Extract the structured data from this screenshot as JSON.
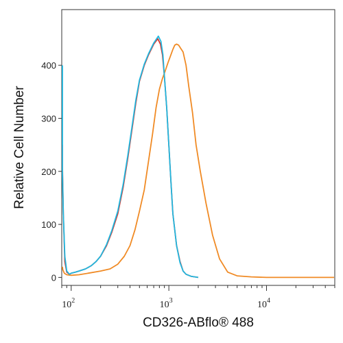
{
  "chart_data": {
    "type": "line",
    "xlabel": "CD326-ABflo® 488",
    "ylabel": "Relative Cell Number",
    "x_scale": "log",
    "xlim": [
      80,
      50000
    ],
    "ylim": [
      -15,
      505
    ],
    "x_ticks": [
      {
        "value": 100,
        "base": "10",
        "exp": "2"
      },
      {
        "value": 1000,
        "base": "10",
        "exp": "3"
      },
      {
        "value": 10000,
        "base": "10",
        "exp": "4"
      }
    ],
    "y_ticks": [
      0,
      100,
      200,
      300,
      400
    ],
    "series": [
      {
        "color": "#d9332b",
        "x": [
          80,
          81,
          83,
          86,
          90,
          96,
          100,
          110,
          120,
          140,
          160,
          180,
          200,
          230,
          260,
          300,
          340,
          380,
          420,
          460,
          500,
          560,
          620,
          700,
          770,
          820,
          860,
          900,
          950,
          1000,
          1050,
          1100,
          1200,
          1300,
          1400,
          1500,
          1700,
          2000
        ],
        "y": [
          250,
          210,
          120,
          30,
          10,
          6,
          8,
          10,
          12,
          16,
          22,
          30,
          40,
          60,
          85,
          120,
          170,
          225,
          280,
          330,
          370,
          400,
          420,
          440,
          450,
          440,
          420,
          380,
          320,
          250,
          180,
          120,
          60,
          30,
          12,
          6,
          2,
          0
        ]
      },
      {
        "color": "#f08a24",
        "x": [
          80,
          82,
          85,
          90,
          100,
          120,
          150,
          200,
          250,
          300,
          350,
          400,
          450,
          500,
          560,
          620,
          680,
          740,
          800,
          860,
          920,
          980,
          1050,
          1100,
          1150,
          1200,
          1260,
          1320,
          1400,
          1500,
          1600,
          1750,
          1900,
          2100,
          2400,
          2800,
          3300,
          4000,
          5000,
          7000,
          10000,
          50000
        ],
        "y": [
          20,
          15,
          8,
          5,
          4,
          5,
          8,
          12,
          16,
          25,
          40,
          60,
          90,
          125,
          165,
          220,
          270,
          320,
          355,
          375,
          390,
          405,
          420,
          430,
          438,
          440,
          438,
          432,
          425,
          400,
          360,
          310,
          250,
          200,
          140,
          80,
          35,
          10,
          3,
          1,
          0,
          0
        ]
      },
      {
        "color": "#1fb8e0",
        "x": [
          80,
          81,
          83,
          86,
          90,
          96,
          100,
          110,
          120,
          140,
          160,
          180,
          200,
          230,
          260,
          300,
          340,
          380,
          420,
          460,
          500,
          560,
          620,
          700,
          780,
          830,
          870,
          900,
          950,
          1000,
          1050,
          1100,
          1200,
          1300,
          1400,
          1500,
          1700,
          2000
        ],
        "y": [
          400,
          200,
          120,
          40,
          12,
          6,
          8,
          10,
          12,
          16,
          22,
          30,
          40,
          62,
          88,
          125,
          175,
          230,
          285,
          335,
          372,
          402,
          422,
          442,
          455,
          445,
          420,
          380,
          320,
          250,
          180,
          120,
          60,
          28,
          12,
          6,
          2,
          0
        ]
      }
    ]
  }
}
